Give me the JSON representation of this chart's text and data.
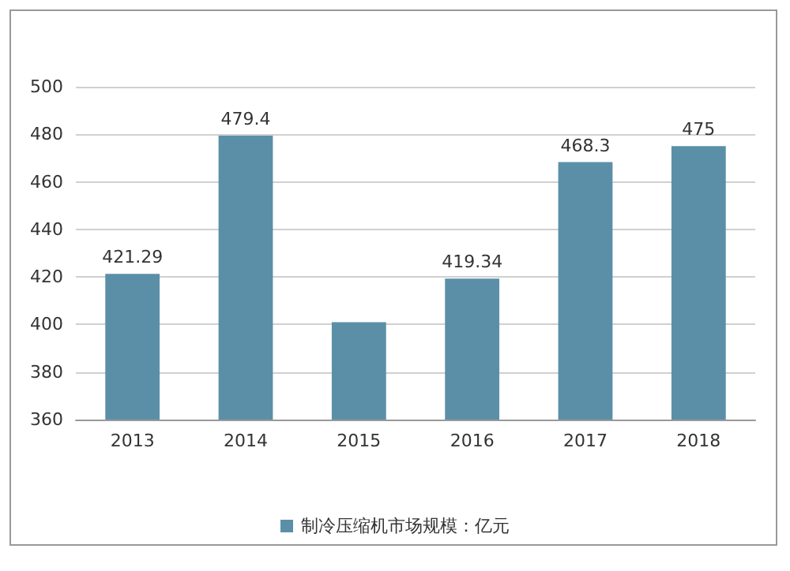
{
  "chart_data": {
    "type": "bar",
    "categories": [
      "2013",
      "2014",
      "2015",
      "2016",
      "2017",
      "2018"
    ],
    "series": [
      {
        "name": "制冷压缩机市场规模：亿元",
        "color": "#5b8fa8",
        "values": [
          421.29,
          479.4,
          401,
          419.34,
          468.3,
          475
        ],
        "value_labels": [
          "421.29",
          "479.4",
          null,
          "419.34",
          "468.3",
          "475"
        ]
      }
    ],
    "ylim": [
      360,
      500
    ],
    "yticks": [
      360,
      380,
      400,
      420,
      440,
      460,
      480,
      500
    ],
    "grid": "y",
    "legend": "bottom"
  }
}
